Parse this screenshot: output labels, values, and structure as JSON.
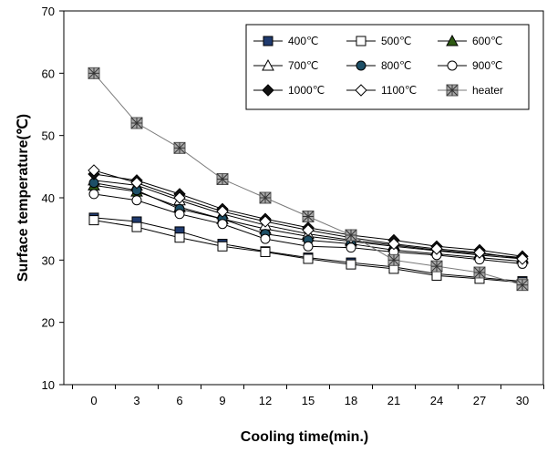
{
  "chart_data": {
    "type": "line",
    "xlabel": "Cooling time(min.)",
    "ylabel": "Surface temperature(℃)",
    "x": [
      0,
      3,
      6,
      9,
      12,
      15,
      18,
      21,
      24,
      27,
      30
    ],
    "ylim": [
      10,
      70
    ],
    "yticks": [
      10,
      20,
      30,
      40,
      50,
      60,
      70
    ],
    "grid": false,
    "legend_position": "top-right",
    "series": [
      {
        "name": "400℃",
        "marker": "square-filled",
        "values": [
          36.8,
          36.2,
          34.6,
          32.6,
          31.4,
          30.4,
          29.6,
          28.9,
          27.8,
          27.2,
          26.6
        ]
      },
      {
        "name": "500℃",
        "marker": "square-open",
        "values": [
          36.4,
          35.3,
          33.6,
          32.2,
          31.3,
          30.2,
          29.3,
          28.6,
          27.5,
          27.0,
          26.4
        ]
      },
      {
        "name": "600℃",
        "marker": "triangle-filled",
        "values": [
          42.0,
          41.0,
          38.5,
          36.6,
          35.0,
          33.8,
          33.0,
          32.2,
          31.5,
          30.8,
          30.2
        ]
      },
      {
        "name": "700℃",
        "marker": "triangle-open",
        "values": [
          42.8,
          42.0,
          39.6,
          37.4,
          35.6,
          34.2,
          33.2,
          32.4,
          31.6,
          31.0,
          30.4
        ]
      },
      {
        "name": "800℃",
        "marker": "circle-filled",
        "values": [
          42.4,
          41.2,
          38.2,
          36.6,
          34.2,
          33.2,
          32.6,
          31.6,
          31.0,
          30.4,
          29.8
        ]
      },
      {
        "name": "900℃",
        "marker": "circle-open",
        "values": [
          40.6,
          39.6,
          37.4,
          35.8,
          33.4,
          32.2,
          32.0,
          31.3,
          30.8,
          30.1,
          29.4
        ]
      },
      {
        "name": "1000℃",
        "marker": "diamond-filled",
        "values": [
          43.8,
          42.8,
          40.6,
          38.2,
          36.6,
          35.2,
          34.0,
          33.2,
          32.2,
          31.6,
          30.6
        ]
      },
      {
        "name": "1100℃",
        "marker": "diamond-open",
        "values": [
          44.4,
          42.4,
          40.0,
          37.8,
          36.2,
          34.8,
          33.6,
          32.6,
          31.8,
          31.2,
          30.2
        ]
      },
      {
        "name": "heater",
        "marker": "star-box",
        "values": [
          60.0,
          52.0,
          48.0,
          43.0,
          40.0,
          37.0,
          34.0,
          30.0,
          29.0,
          28.0,
          26.0
        ]
      }
    ]
  }
}
